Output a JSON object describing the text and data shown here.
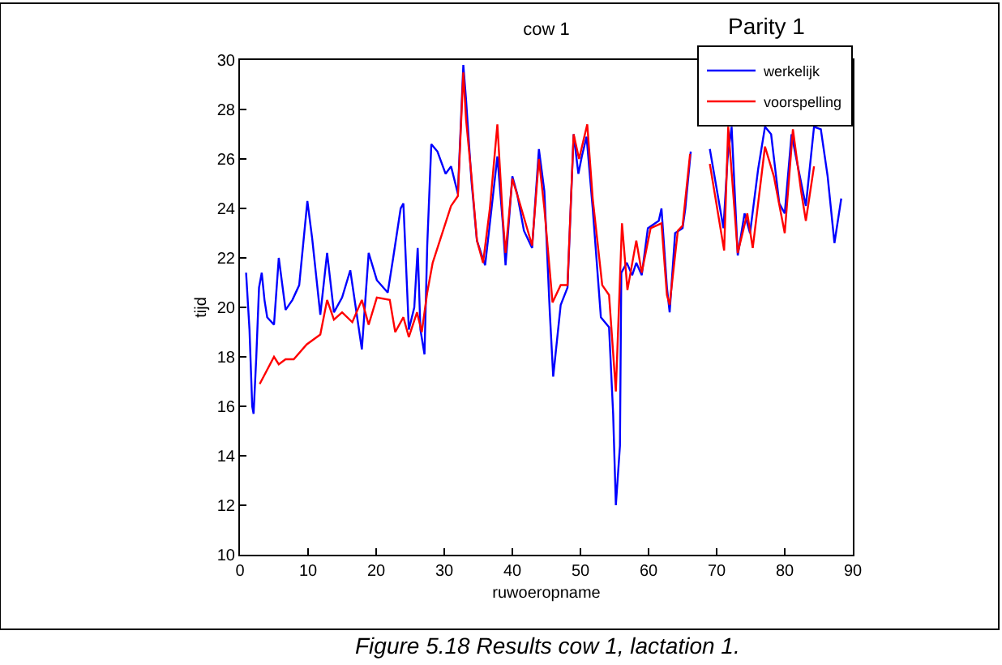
{
  "chart_data": {
    "type": "line",
    "title": "cow 1",
    "xlabel": "ruwoeropname",
    "ylabel": "tijd",
    "annotations": [
      "Parity 1",
      "Figure 5.18 Results cow 1, lactation 1."
    ],
    "xlim": [
      0,
      90
    ],
    "xticks": [
      0,
      10,
      20,
      30,
      40,
      50,
      60,
      70,
      80,
      90
    ],
    "ylim": [
      10,
      30
    ],
    "yticks": [
      10,
      12,
      14,
      16,
      18,
      20,
      22,
      24,
      26,
      28,
      30
    ],
    "grid": false,
    "legend": "top right",
    "marker": "none",
    "line_style": "solid",
    "series": [
      {
        "name": "werkelijk",
        "color": "#0000ff",
        "x": [
          0.9,
          1.4,
          1.8,
          2.0,
          2.4,
          2.8,
          3.2,
          3.6,
          4.0,
          5.0,
          5.7,
          6.7,
          7.7,
          8.7,
          9.9,
          10.6,
          11.8,
          12.8,
          13.8,
          15.0,
          16.2,
          17.0,
          17.9,
          18.9,
          20.1,
          21.7,
          22.5,
          23.6,
          24.0,
          24.8,
          25.6,
          26.1,
          26.5,
          27.1,
          27.5,
          28.1,
          29.0,
          30.2,
          31.0,
          32.0,
          32.8,
          33.2,
          34.0,
          34.8,
          36.0,
          36.7,
          37.8,
          38.6,
          39.0,
          40.0,
          40.7,
          41.7,
          42.9,
          43.9,
          44.7,
          45.5,
          46.0,
          47.1,
          48.1,
          49.0,
          49.7,
          50.2,
          50.9,
          51.8,
          53.0,
          54.2,
          54.8,
          55.2,
          55.8,
          56.0,
          56.8,
          57.6,
          58.2,
          59.0,
          59.9,
          61.5,
          61.9,
          62.7,
          63.1,
          63.9,
          65.0,
          65.4,
          66.2,
          67.5,
          69.0,
          71.0,
          71.6,
          72.2,
          73.1,
          74.1,
          74.9,
          76.1,
          77.1,
          78.0,
          79.2,
          80.0,
          81.0,
          82.0,
          83.1,
          84.3,
          85.3,
          86.3,
          87.3,
          88.3
        ],
        "values": [
          21.4,
          19.1,
          16.0,
          15.7,
          18.0,
          20.8,
          21.4,
          20.3,
          19.6,
          19.3,
          22.0,
          19.9,
          20.3,
          20.9,
          24.3,
          22.8,
          19.7,
          22.2,
          19.8,
          20.4,
          21.5,
          20.0,
          18.3,
          22.2,
          21.1,
          20.6,
          22.0,
          24.0,
          24.2,
          19.1,
          20.0,
          22.4,
          19.1,
          18.1,
          22.5,
          26.6,
          26.3,
          25.4,
          25.7,
          24.6,
          29.8,
          28.4,
          25.1,
          22.7,
          21.7,
          23.4,
          26.1,
          23.4,
          21.7,
          25.3,
          24.6,
          23.1,
          22.4,
          26.4,
          24.7,
          19.8,
          17.2,
          20.1,
          20.8,
          27.0,
          25.4,
          26.1,
          26.9,
          24.0,
          19.6,
          19.2,
          15.7,
          12.0,
          14.4,
          21.4,
          21.8,
          21.3,
          21.8,
          21.3,
          23.2,
          23.5,
          24.0,
          20.8,
          19.8,
          23.0,
          23.2,
          24.0,
          26.3,
          null,
          26.4,
          23.2,
          26.0,
          27.3,
          22.1,
          23.8,
          23.0,
          25.6,
          27.3,
          27.0,
          24.2,
          23.8,
          27.0,
          25.6,
          24.1,
          27.3,
          27.2,
          25.3,
          22.6,
          24.4
        ]
      },
      {
        "name": "voorspelling",
        "color": "#ff0000",
        "x": [
          2.9,
          5.0,
          5.7,
          6.7,
          7.9,
          9.8,
          11.8,
          12.8,
          13.8,
          15.0,
          16.5,
          17.9,
          18.9,
          20.1,
          22.0,
          22.8,
          24.0,
          24.8,
          26.0,
          26.7,
          27.5,
          28.3,
          31.0,
          32.0,
          32.8,
          33.2,
          34.0,
          34.8,
          35.7,
          36.7,
          37.8,
          38.6,
          39.0,
          40.0,
          41.1,
          42.9,
          43.9,
          44.7,
          45.9,
          47.1,
          48.1,
          49.0,
          49.8,
          51.0,
          51.8,
          53.2,
          54.2,
          55.2,
          56.1,
          56.9,
          58.2,
          59.0,
          60.3,
          61.9,
          62.7,
          63.1,
          64.3,
          65.0,
          66.1,
          67.5,
          69.0,
          71.1,
          71.7,
          73.1,
          74.5,
          75.3,
          77.1,
          78.4,
          80.0,
          81.2,
          82.4,
          83.1,
          84.3
        ],
        "values": [
          16.9,
          18.0,
          17.7,
          17.9,
          17.9,
          18.5,
          18.9,
          20.3,
          19.5,
          19.8,
          19.4,
          20.3,
          19.3,
          20.4,
          20.3,
          19.0,
          19.6,
          18.8,
          19.8,
          19.0,
          20.6,
          21.8,
          24.1,
          24.5,
          29.5,
          27.6,
          25.3,
          22.7,
          21.8,
          24.0,
          27.4,
          23.6,
          22.2,
          25.2,
          24.2,
          22.5,
          26.0,
          24.0,
          20.2,
          20.9,
          20.9,
          27.0,
          26.0,
          27.4,
          24.4,
          20.9,
          20.5,
          16.6,
          23.4,
          20.7,
          22.7,
          21.4,
          23.2,
          23.4,
          20.5,
          20.1,
          23.1,
          23.3,
          26.2,
          null,
          25.8,
          22.3,
          27.3,
          22.2,
          23.8,
          22.4,
          26.5,
          25.3,
          23.0,
          27.2,
          24.7,
          23.5,
          25.7
        ]
      }
    ]
  }
}
